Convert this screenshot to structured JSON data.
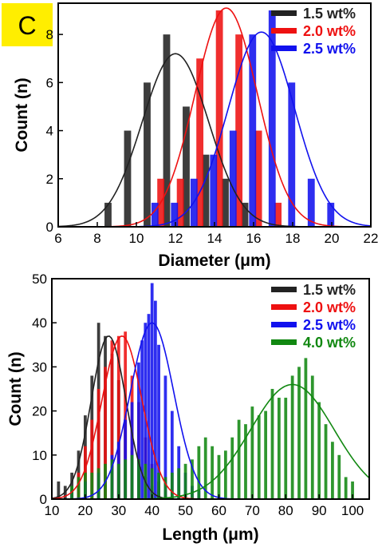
{
  "figure": {
    "panel_label": "C",
    "badge_color": "#ffee00"
  },
  "colors": {
    "1.5": "#222222",
    "2.0": "#ee1111",
    "2.5": "#1111ee",
    "4.0": "#118811"
  },
  "chart_data": [
    {
      "type": "bar",
      "xlabel": "Diameter (μm)",
      "ylabel": "Count (n)",
      "xlim": [
        6,
        22
      ],
      "ylim": [
        0,
        9.3
      ],
      "xticks": [
        6,
        8,
        10,
        12,
        14,
        16,
        18,
        20,
        22
      ],
      "yticks": [
        0,
        2,
        4,
        6,
        8
      ],
      "grid": false,
      "legend_position": "top-right",
      "bar_width": 0.36,
      "series": [
        {
          "name": "1.5 wt%",
          "color_key": "1.5",
          "offset": -0.2,
          "x": [
            8.75,
            9.75,
            10.75,
            11.75,
            12.75,
            13.75,
            14.75,
            15.75
          ],
          "values": [
            1,
            4,
            6,
            8,
            5,
            3,
            2,
            1
          ],
          "fit": {
            "mean": 12.0,
            "sd": 1.7,
            "peak": 7.2
          }
        },
        {
          "name": "2.0 wt%",
          "color_key": "2.0",
          "offset": 0.0,
          "x": [
            11.25,
            12.25,
            13.25,
            14.25,
            15.25,
            16.25,
            17.25
          ],
          "values": [
            2,
            2,
            7,
            9,
            8,
            4,
            1
          ],
          "fit": {
            "mean": 14.6,
            "sd": 1.6,
            "peak": 9.1
          }
        },
        {
          "name": "2.5 wt%",
          "color_key": "2.5",
          "offset": 0.2,
          "x": [
            10.75,
            11.75,
            12.75,
            13.75,
            14.75,
            15.75,
            16.75,
            17.75,
            18.75,
            19.75
          ],
          "values": [
            1,
            1,
            2,
            3,
            4,
            8,
            9,
            6,
            2,
            1
          ],
          "fit": {
            "mean": 16.4,
            "sd": 1.7,
            "peak": 8.1
          }
        }
      ]
    },
    {
      "type": "bar",
      "xlabel": "Length (μm)",
      "ylabel": "Count (n)",
      "xlim": [
        10,
        105
      ],
      "ylim": [
        0,
        50
      ],
      "xticks": [
        10,
        20,
        30,
        40,
        50,
        60,
        70,
        80,
        90,
        100
      ],
      "yticks": [
        0,
        10,
        20,
        30,
        40,
        50
      ],
      "grid": false,
      "legend_position": "top-right",
      "bar_width": 0.9,
      "series": [
        {
          "name": "1.5 wt%",
          "color_key": "1.5",
          "offset": 0.0,
          "x": [
            12,
            14,
            16,
            18,
            20,
            22,
            24,
            26,
            28,
            30,
            32,
            34,
            36,
            38,
            40,
            42,
            44
          ],
          "values": [
            4,
            3,
            6,
            11,
            19,
            28,
            40,
            37,
            33,
            27,
            18,
            11,
            8,
            5,
            3,
            2,
            1
          ],
          "fit": {
            "mean": 27,
            "sd": 5.2,
            "peak": 37
          }
        },
        {
          "name": "2.0 wt%",
          "color_key": "2.0",
          "offset": 0.0,
          "x": [
            16,
            18,
            20,
            22,
            24,
            26,
            28,
            30,
            32,
            34,
            36,
            38,
            40,
            42,
            44
          ],
          "values": [
            2,
            6,
            12,
            18,
            25,
            30,
            36,
            37,
            38,
            28,
            22,
            14,
            8,
            4,
            2
          ],
          "fit": {
            "mean": 31,
            "sd": 6.0,
            "peak": 37
          }
        },
        {
          "name": "2.5 wt%",
          "color_key": "2.5",
          "offset": 0.0,
          "x": [
            16,
            20,
            24,
            28,
            30,
            32,
            34,
            36,
            37,
            38,
            39,
            40,
            41,
            42,
            44,
            46,
            48,
            50,
            52,
            54
          ],
          "values": [
            2,
            4,
            6,
            10,
            13,
            18,
            22,
            31,
            36,
            40,
            42,
            49,
            45,
            35,
            28,
            20,
            12,
            6,
            3,
            2
          ],
          "fit": {
            "mean": 40,
            "sd": 6.5,
            "peak": 40
          }
        },
        {
          "name": "4.0 wt%",
          "color_key": "4.0",
          "offset": 0.0,
          "x": [
            16,
            18,
            20,
            22,
            24,
            26,
            28,
            30,
            32,
            34,
            36,
            38,
            40,
            42,
            44,
            46,
            48,
            50,
            52,
            54,
            56,
            58,
            60,
            62,
            64,
            66,
            68,
            70,
            72,
            74,
            76,
            78,
            80,
            82,
            84,
            86,
            88,
            90,
            92,
            94,
            96,
            98,
            100
          ],
          "values": [
            3,
            5,
            6,
            6,
            7,
            8,
            9,
            8,
            9,
            10,
            9,
            8,
            7,
            6,
            5,
            6,
            7,
            8,
            9,
            12,
            14,
            12,
            10,
            11,
            14,
            18,
            17,
            21,
            19,
            20,
            25,
            23,
            23,
            28,
            30,
            32,
            28,
            22,
            17,
            13,
            10,
            5,
            4
          ],
          "fit": {
            "mean": 82,
            "sd": 12.5,
            "peak": 26
          }
        }
      ]
    }
  ]
}
